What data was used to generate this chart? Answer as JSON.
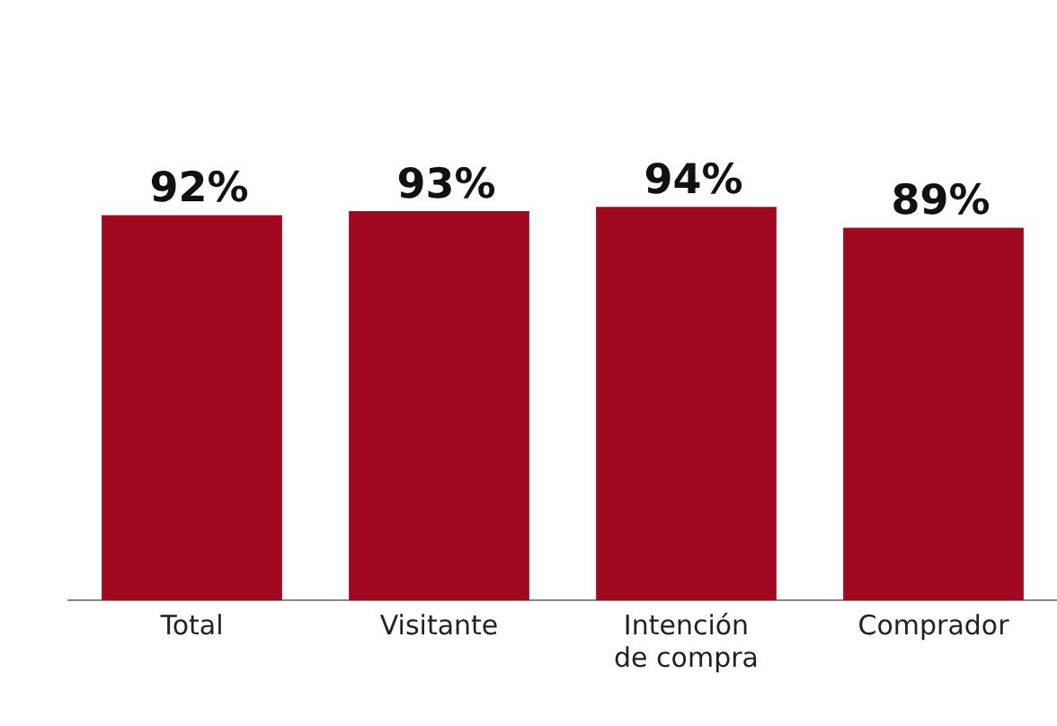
{
  "chart_data": {
    "type": "bar",
    "categories": [
      "Total",
      "Visitante",
      "Intención de compra",
      "Comprador"
    ],
    "values": [
      92,
      93,
      94,
      89
    ],
    "value_labels": [
      "92%",
      "93%",
      "94%",
      "89%"
    ],
    "color": "#a0081f",
    "tick_labels": "x",
    "grid": false,
    "legend": false
  }
}
